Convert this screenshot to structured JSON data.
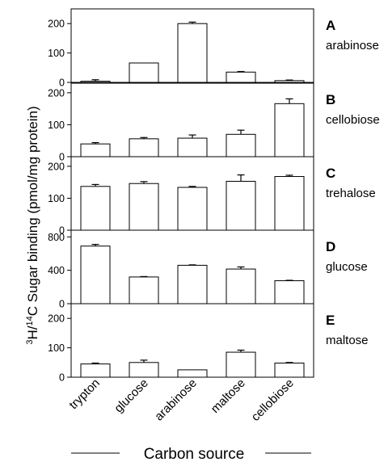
{
  "chart_data": {
    "type": "bar",
    "ylabel": {
      "iso1": "3",
      "el1": "H/",
      "iso2": "14",
      "el2": "C Sugar binding (pmol/mg protein)"
    },
    "xlabel": "Carbon source",
    "categories": [
      "trypton",
      "glucose",
      "arabinose",
      "maltose",
      "cellobiose"
    ],
    "panels": [
      {
        "letter": "A",
        "name": "arabinose",
        "ylim": [
          0,
          250
        ],
        "yticks": [
          "0",
          "100",
          "200"
        ],
        "tickvals": [
          0,
          100,
          200
        ],
        "values": [
          4,
          66,
          200,
          35,
          6
        ],
        "errors": [
          5,
          0,
          5,
          2,
          2
        ]
      },
      {
        "letter": "B",
        "name": "cellobiose",
        "ylim": [
          0,
          230
        ],
        "yticks": [
          "0",
          "100",
          "200"
        ],
        "tickvals": [
          0,
          100,
          200
        ],
        "values": [
          40,
          56,
          58,
          70,
          166
        ],
        "errors": [
          4,
          4,
          10,
          13,
          15
        ]
      },
      {
        "letter": "C",
        "name": "trehalose",
        "ylim": [
          0,
          230
        ],
        "yticks": [
          "0",
          "100",
          "200"
        ],
        "tickvals": [
          0,
          100,
          200
        ],
        "values": [
          137,
          146,
          134,
          153,
          168
        ],
        "errors": [
          6,
          6,
          3,
          20,
          4
        ]
      },
      {
        "letter": "D",
        "name": "glucose",
        "ylim": [
          0,
          880
        ],
        "yticks": [
          "0",
          "400",
          "800"
        ],
        "tickvals": [
          0,
          400,
          800
        ],
        "values": [
          690,
          320,
          460,
          415,
          275
        ],
        "errors": [
          20,
          5,
          5,
          25,
          5
        ]
      },
      {
        "letter": "E",
        "name": "maltose",
        "ylim": [
          0,
          250
        ],
        "yticks": [
          "0",
          "100",
          "200"
        ],
        "tickvals": [
          0,
          100,
          200
        ],
        "values": [
          45,
          50,
          25,
          85,
          48
        ],
        "errors": [
          3,
          8,
          0,
          7,
          2
        ]
      }
    ]
  }
}
